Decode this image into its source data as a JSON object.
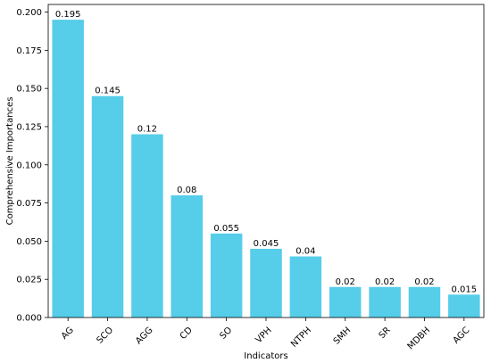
{
  "chart_data": {
    "type": "bar",
    "title": "",
    "xlabel": "Indicators",
    "ylabel": "Comprehensive Importances",
    "categories": [
      "AG",
      "SCO",
      "AGG",
      "CD",
      "SO",
      "VPH",
      "NTPH",
      "SMH",
      "SR",
      "MDBH",
      "AGC"
    ],
    "values": [
      0.195,
      0.145,
      0.12,
      0.08,
      0.055,
      0.045,
      0.04,
      0.02,
      0.02,
      0.02,
      0.015
    ],
    "value_labels": [
      "0.195",
      "0.145",
      "0.12",
      "0.08",
      "0.055",
      "0.045",
      "0.04",
      "0.02",
      "0.02",
      "0.02",
      "0.015"
    ],
    "ylim": [
      0,
      0.2
    ],
    "yticks": [
      "0.000",
      "0.025",
      "0.050",
      "0.075",
      "0.100",
      "0.125",
      "0.150",
      "0.175",
      "0.200"
    ],
    "ytick_values": [
      0,
      0.025,
      0.05,
      0.075,
      0.1,
      0.125,
      0.15,
      0.175,
      0.2
    ],
    "bar_color": "#56CDE9",
    "grid": false,
    "legend": "none"
  }
}
